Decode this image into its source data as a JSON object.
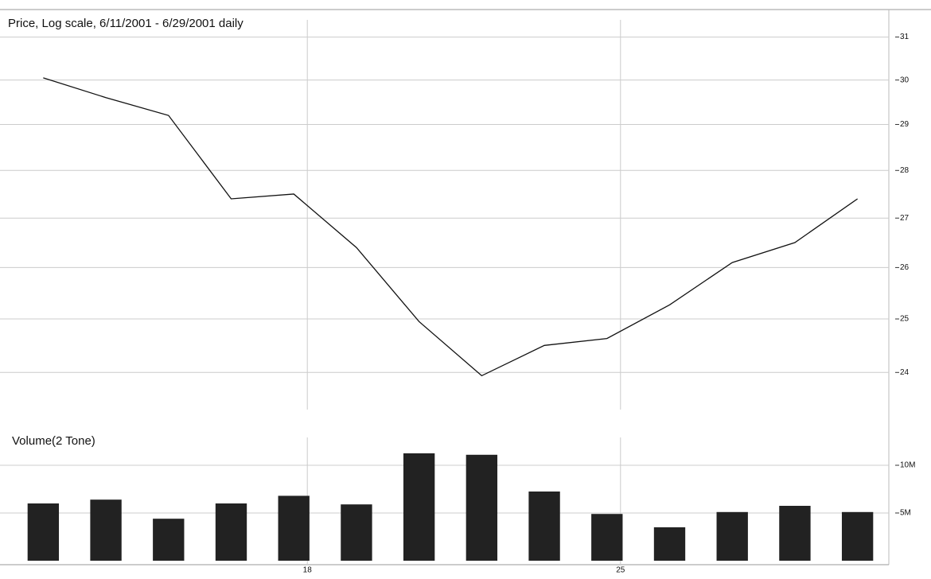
{
  "chart_data": [
    {
      "type": "line",
      "title": "Price, Log scale, 6/11/2001 - 6/29/2001 daily",
      "log_scale": true,
      "grid": true,
      "color": "#111111",
      "values": [
        30.05,
        29.6,
        29.2,
        27.4,
        27.5,
        26.4,
        24.95,
        23.94,
        24.5,
        24.63,
        25.27,
        26.1,
        26.5,
        27.4
      ],
      "ylim": [
        23.4,
        31.6
      ],
      "yticks": [
        24,
        25,
        26,
        27,
        28,
        29,
        30,
        31
      ]
    },
    {
      "type": "bar",
      "title": "Volume(2 Tone)",
      "grid": true,
      "color": "#222222",
      "categories": [
        null,
        null,
        null,
        null,
        "18",
        null,
        null,
        null,
        null,
        "25",
        null,
        null,
        null,
        null
      ],
      "values": [
        6.0,
        6.4,
        4.4,
        6.0,
        6.8,
        5.9,
        11.25,
        11.1,
        7.25,
        4.9,
        3.5,
        5.1,
        5.75,
        5.1
      ],
      "ylim": [
        0,
        13.75
      ],
      "yticks": [
        {
          "value": 5,
          "label": "5M"
        },
        {
          "value": 10,
          "label": "10M"
        }
      ]
    }
  ]
}
